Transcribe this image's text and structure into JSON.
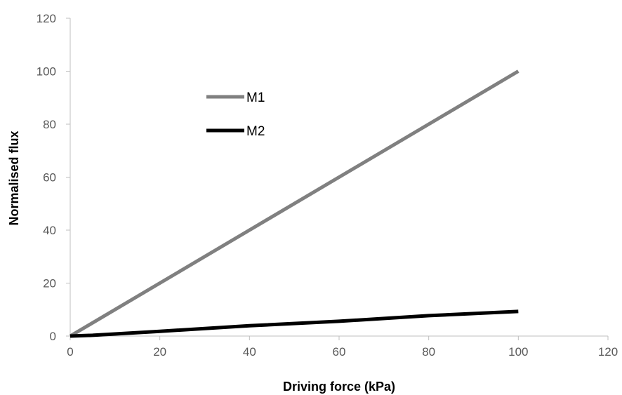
{
  "chart_data": {
    "type": "line",
    "title": "",
    "xlabel": "Driving force (kPa)",
    "ylabel": "Normalised flux",
    "xlim": [
      0,
      120
    ],
    "ylim": [
      0,
      120
    ],
    "xticks": [
      0,
      20,
      40,
      60,
      80,
      100,
      120
    ],
    "yticks": [
      0,
      20,
      40,
      60,
      80,
      100,
      120
    ],
    "grid": false,
    "legend_position": "upper-left",
    "series": [
      {
        "name": "M1",
        "color": "#808080",
        "x": [
          0,
          20,
          40,
          60,
          80,
          100
        ],
        "y": [
          0,
          20,
          40,
          60,
          80,
          100
        ]
      },
      {
        "name": "M2",
        "color": "#000000",
        "x": [
          0,
          5,
          20,
          40,
          60,
          80,
          100
        ],
        "y": [
          0,
          0.3,
          1.8,
          3.9,
          5.6,
          7.7,
          9.3
        ]
      }
    ]
  }
}
